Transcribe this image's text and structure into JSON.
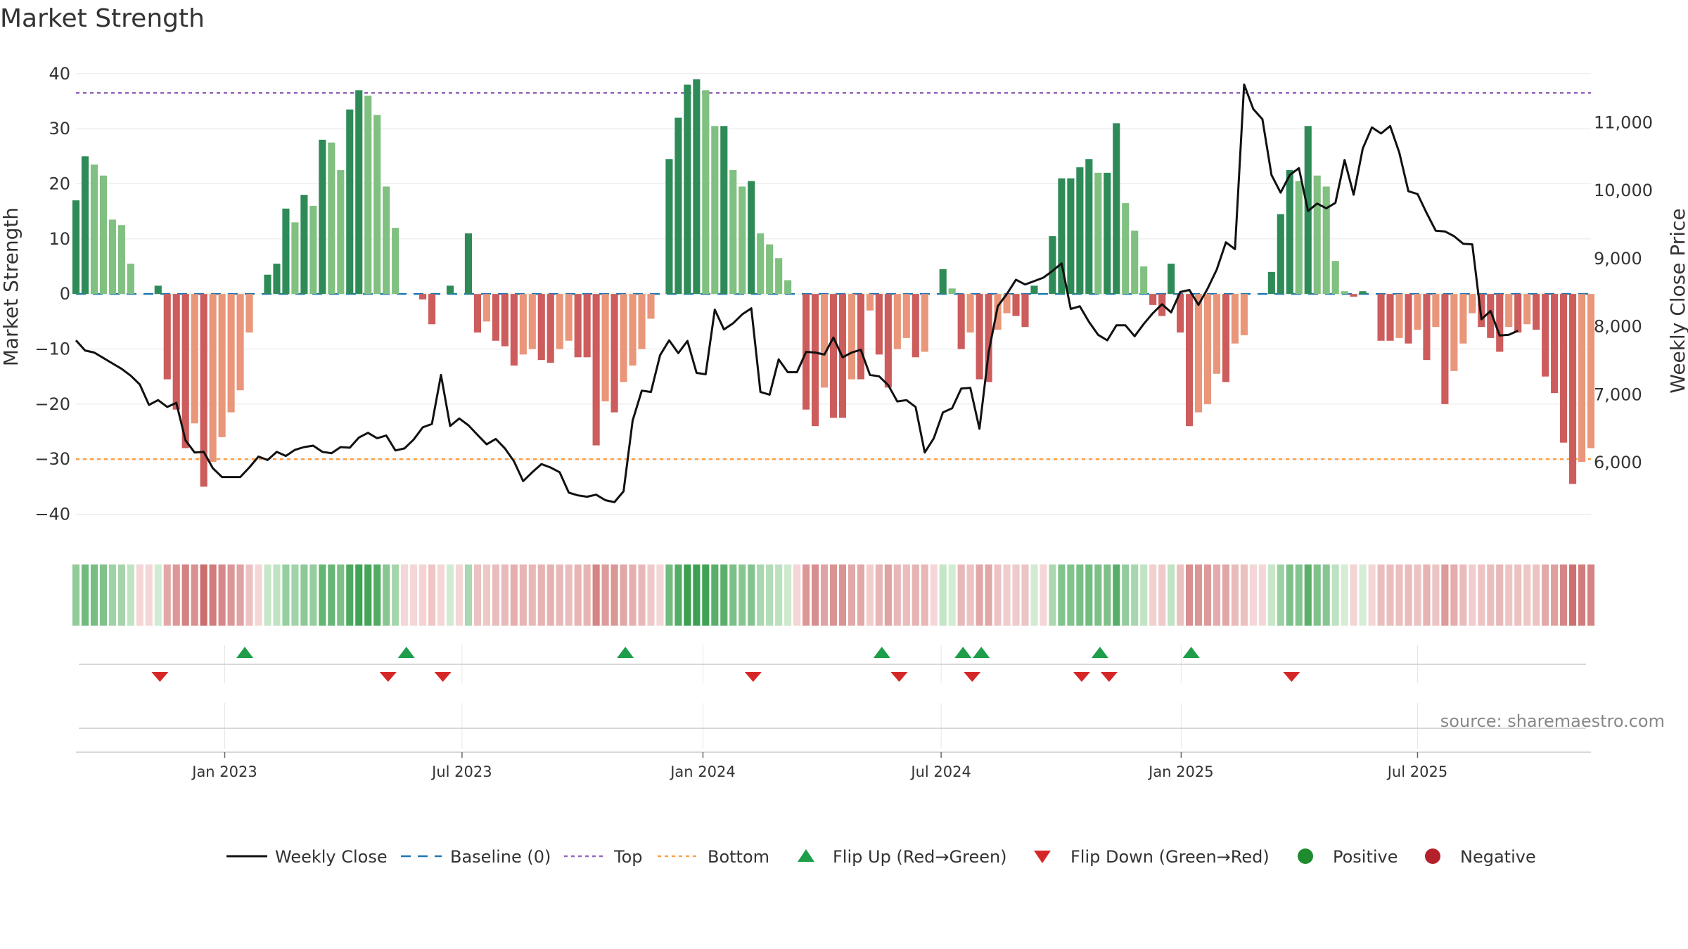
{
  "chart_data": {
    "type": "bar",
    "title": "Market Strength",
    "ylabel": "Market Strength",
    "y2label": "Weekly Close Price",
    "ylim": [
      -43,
      41
    ],
    "y2lim": [
      5000,
      11800
    ],
    "yticks": [
      40,
      30,
      20,
      10,
      0,
      -10,
      -20,
      -30,
      -40
    ],
    "ytick_labels": [
      "40",
      "30",
      "20",
      "10",
      "0",
      "−10",
      "−20",
      "−30",
      "−40"
    ],
    "y2ticks": [
      11000,
      10000,
      9000,
      8000,
      7000,
      6000
    ],
    "y2tick_labels": [
      "11,000",
      "10,000",
      "9,000",
      "8,000",
      "7,000",
      "6,000"
    ],
    "top_line": 36.5,
    "bottom_line": -30,
    "x_range_weeks": [
      0,
      157
    ],
    "xticks": [
      {
        "label": "Jan 2023",
        "week": 16.3
      },
      {
        "label": "Jul 2023",
        "week": 42.3
      },
      {
        "label": "Jan 2024",
        "week": 68.7
      },
      {
        "label": "Jul 2024",
        "week": 94.8
      },
      {
        "label": "Jan 2025",
        "week": 121.1
      },
      {
        "label": "Jul 2025",
        "week": 147.0
      }
    ],
    "strength": [
      17,
      25,
      23.5,
      21.5,
      13.5,
      12.5,
      5.5,
      0,
      0,
      1.5,
      -15.5,
      -21,
      -28,
      -23.5,
      -35,
      -30.5,
      -26,
      -21.5,
      -17.5,
      -7,
      0,
      3.5,
      5.5,
      15.5,
      13,
      18,
      16,
      28,
      27.5,
      22.5,
      33.5,
      37,
      36,
      32.5,
      19.5,
      12,
      0,
      0,
      -1,
      -5.5,
      0,
      1.5,
      0,
      11,
      -7,
      -5,
      -8.5,
      -9.5,
      -13,
      -11,
      -10,
      -12,
      -12.5,
      -10,
      -8.5,
      -11.5,
      -11.5,
      -27.5,
      -19.5,
      -21.5,
      -16,
      -13,
      -10,
      -4.5,
      0,
      24.5,
      32,
      38,
      39,
      37,
      30.5,
      30.5,
      22.5,
      19.5,
      20.5,
      11,
      9,
      6.5,
      2.5,
      0,
      -21,
      -24,
      -17,
      -22.5,
      -22.5,
      -15.5,
      -15.5,
      -3,
      -11,
      -17,
      -10,
      -8,
      -11.5,
      -10.5,
      0,
      4.5,
      1,
      -10,
      -7,
      -15.5,
      -16,
      -6.5,
      -3.5,
      -4,
      -6,
      1.5,
      0,
      10.5,
      21,
      21,
      23,
      24.5,
      22,
      22,
      31,
      16.5,
      11.5,
      5,
      -2,
      -4,
      5.5,
      -7,
      -24,
      -21.5,
      -20,
      -14.5,
      -16,
      -9,
      -7.5,
      0,
      0,
      4,
      14.5,
      22.5,
      20.5,
      30.5,
      21.5,
      19.5,
      6,
      0.5,
      -0.5,
      0.5,
      0,
      -8.5,
      -8.5,
      -8,
      -9,
      -6.5,
      -12,
      -6,
      -20,
      -14,
      -9,
      -3.5,
      -6,
      -8,
      -10.5,
      -6,
      -7,
      -5.5,
      -6.5,
      -15,
      -18,
      -27,
      -34.5,
      -30.5,
      -28
    ],
    "close": [
      7800,
      7650,
      7620,
      7540,
      7460,
      7380,
      7280,
      7150,
      6850,
      6920,
      6820,
      6880,
      6330,
      6150,
      6160,
      5920,
      5790,
      5790,
      5790,
      5930,
      6090,
      6040,
      6160,
      6100,
      6190,
      6230,
      6250,
      6160,
      6140,
      6230,
      6220,
      6370,
      6440,
      6360,
      6400,
      6180,
      6210,
      6340,
      6520,
      6570,
      7290,
      6540,
      6650,
      6550,
      6410,
      6270,
      6350,
      6210,
      6020,
      5730,
      5860,
      5980,
      5930,
      5860,
      5560,
      5520,
      5500,
      5530,
      5450,
      5420,
      5580,
      6620,
      7060,
      7040,
      7580,
      7800,
      7610,
      7790,
      7320,
      7300,
      8250,
      7960,
      8050,
      8180,
      8270,
      7040,
      7000,
      7520,
      7330,
      7330,
      7630,
      7620,
      7590,
      7840,
      7550,
      7620,
      7660,
      7290,
      7270,
      7140,
      6900,
      6920,
      6820,
      6150,
      6360,
      6740,
      6800,
      7090,
      7100,
      6500,
      7620,
      8300,
      8480,
      8690,
      8620,
      8670,
      8720,
      8820,
      8930,
      8260,
      8300,
      8070,
      7880,
      7800,
      8020,
      8020,
      7860,
      8040,
      8200,
      8330,
      8210,
      8510,
      8540,
      8320,
      8560,
      8840,
      9240,
      9140,
      11560,
      11200,
      11050,
      10230,
      9970,
      10230,
      10330,
      9700,
      9810,
      9740,
      9820,
      10450,
      9940,
      10620,
      10930,
      10840,
      10950,
      10560,
      9990,
      9950,
      9670,
      9410,
      9400,
      9330,
      9220,
      9210,
      8110,
      8230,
      7870,
      7880,
      7940
    ],
    "flip_up_weeks": [
      18.5,
      36.2,
      60.2,
      88.3,
      97.2,
      99.2,
      112.2,
      122.2
    ],
    "flip_down_weeks": [
      9.2,
      34.2,
      40.2,
      74.2,
      90.2,
      98.2,
      110.2,
      113.2,
      133.2
    ],
    "series": [
      {
        "name": "Weekly Close"
      },
      {
        "name": "Baseline (0)"
      },
      {
        "name": "Top"
      },
      {
        "name": "Bottom"
      },
      {
        "name": "Flip Up (Red→Green)"
      },
      {
        "name": "Flip Down (Green→Red)"
      },
      {
        "name": "Positive"
      },
      {
        "name": "Negative"
      }
    ],
    "colors": {
      "pos_dark": "#2e8b57",
      "pos_light": "#80c080",
      "neg_dark": "#cd5c5c",
      "neg_light": "#e9967a",
      "close": "#111111",
      "baseline": "#1f77b4",
      "top": "#9467bd",
      "bottom": "#ff9f43",
      "flip_up": "#1e9e4a",
      "flip_down": "#d62728",
      "positive": "#1e8c2e",
      "negative": "#b5212a",
      "grid": "#e6e6e6",
      "axis": "#cccccc"
    }
  },
  "source_text": "source: sharemaestro.com"
}
